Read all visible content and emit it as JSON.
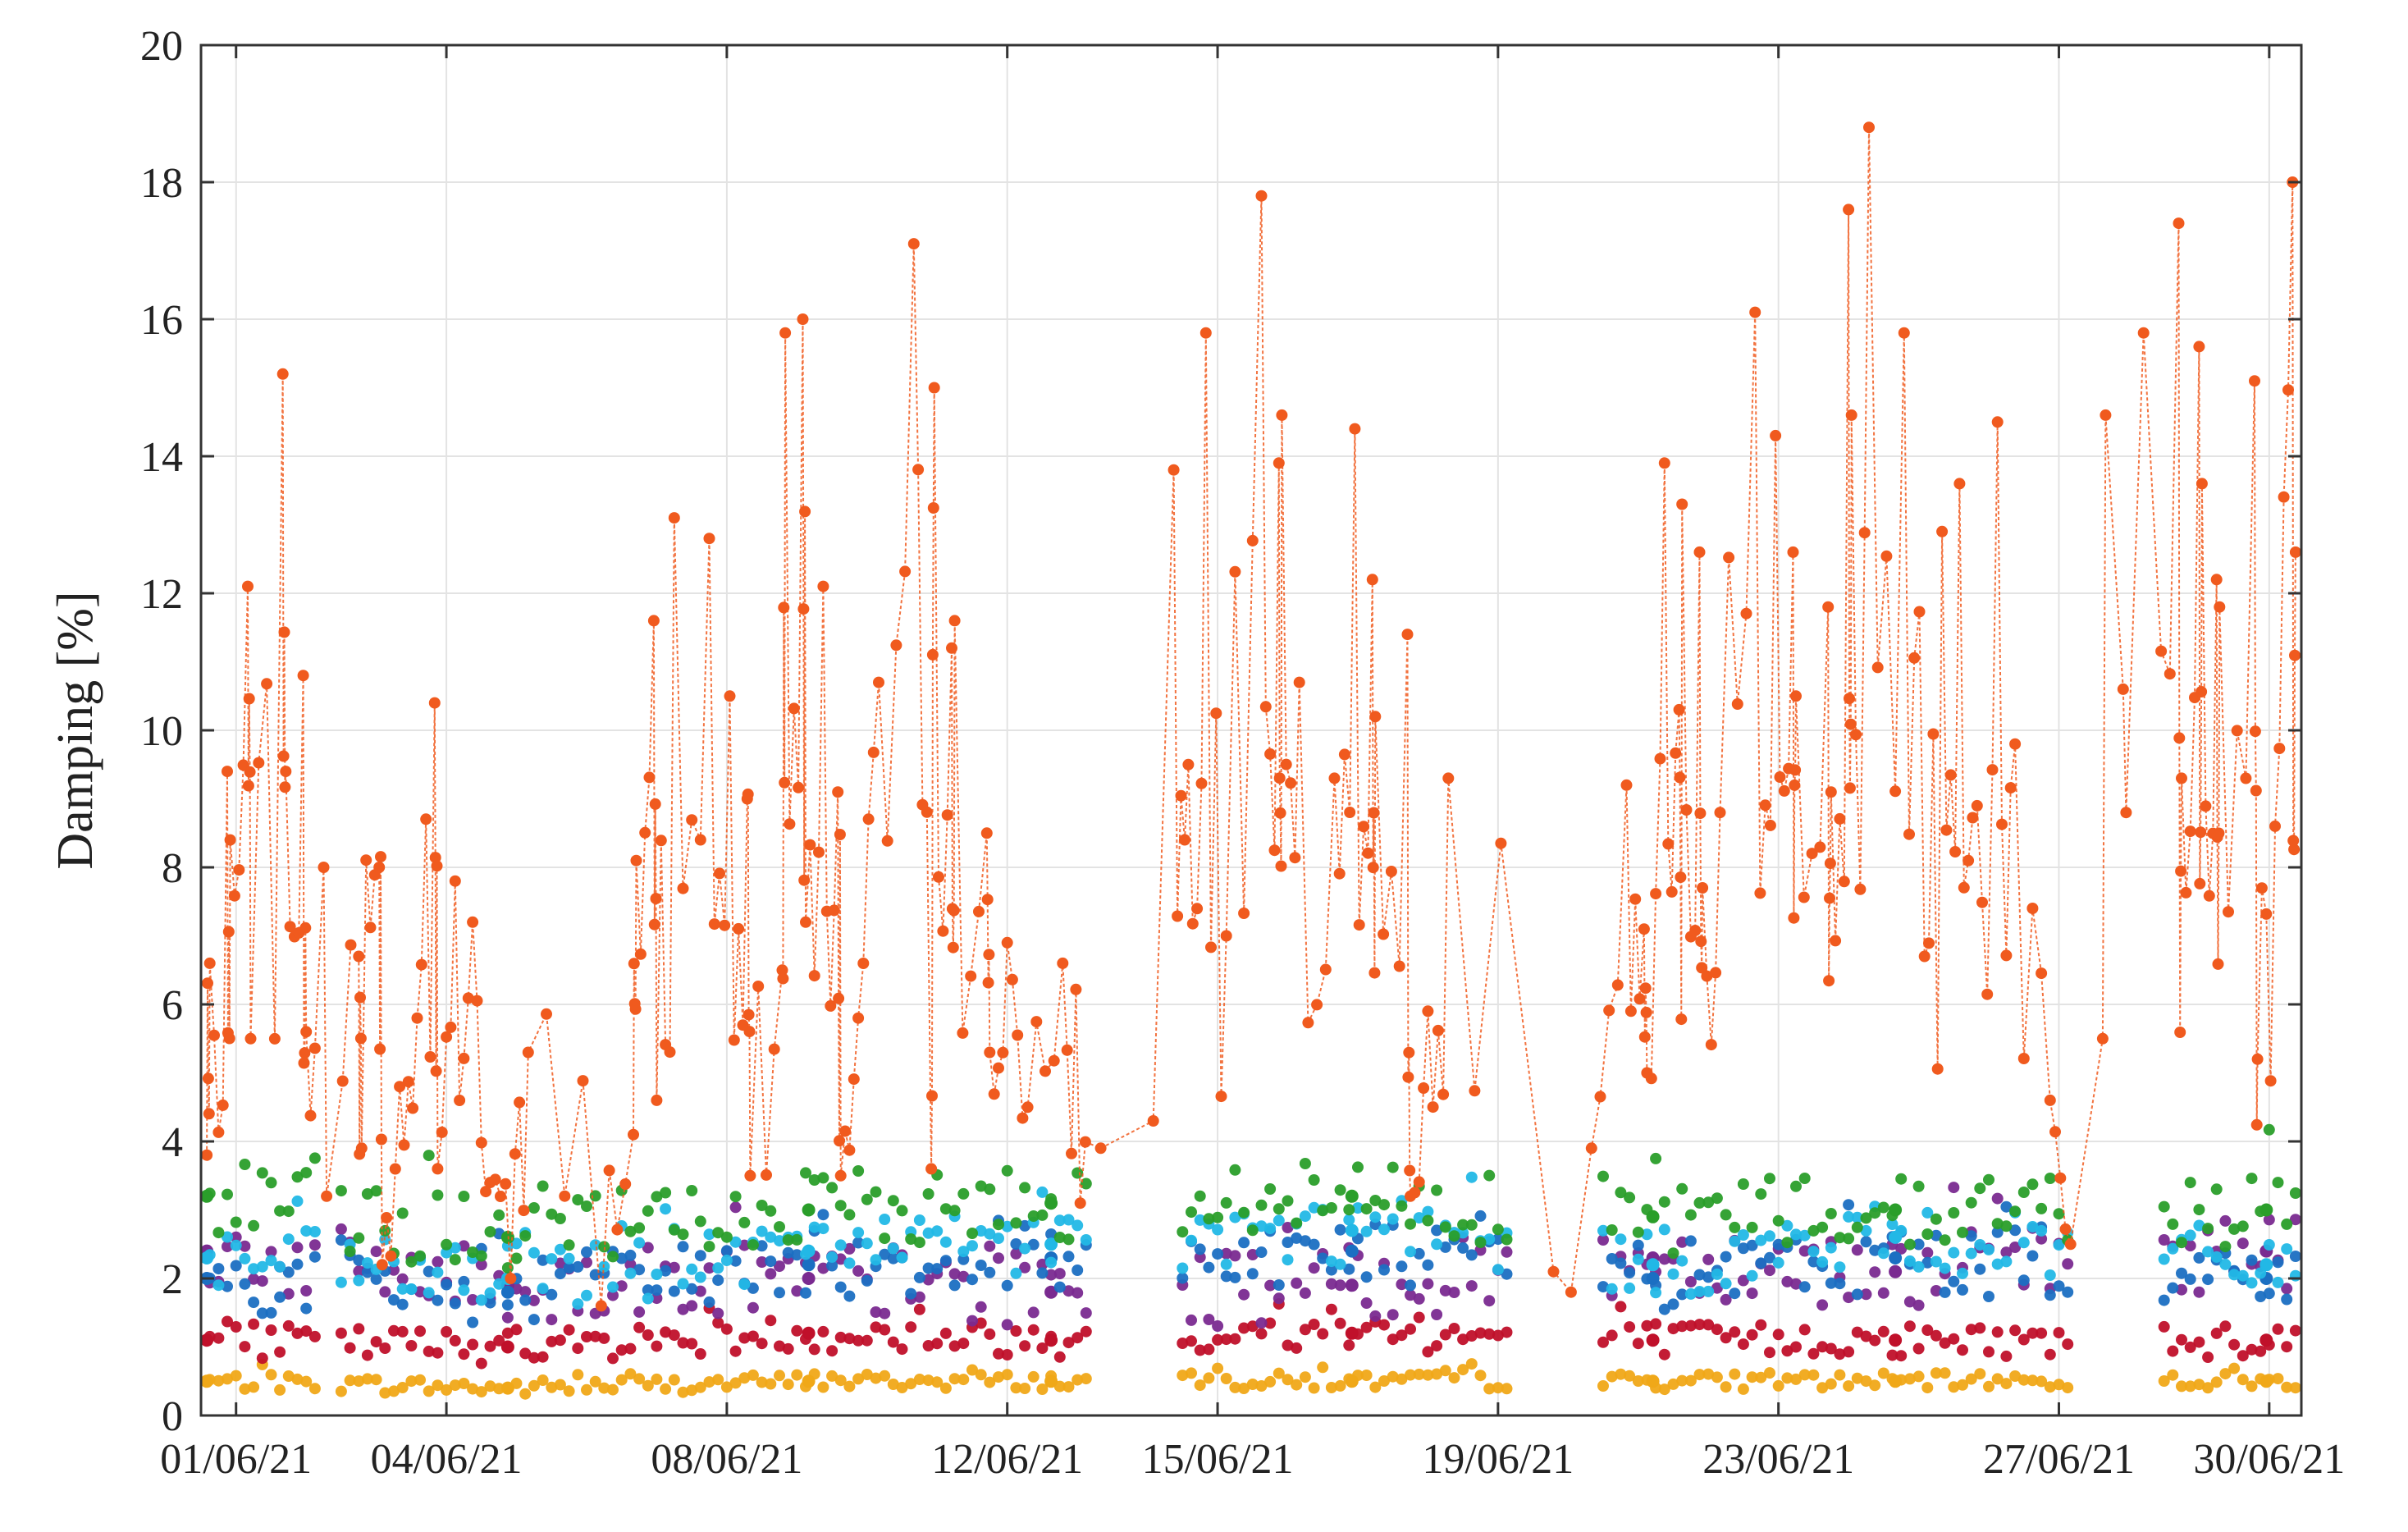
{
  "chart_data": {
    "type": "scatter",
    "title": "",
    "xlabel": "",
    "ylabel": "Damping [%]",
    "xlim": [
      "2021-06-01",
      "2021-06-30"
    ],
    "ylim": [
      0,
      20
    ],
    "grid": true,
    "legend": "none",
    "x_tick_labels": [
      "01/06/21",
      "04/06/21",
      "08/06/21",
      "12/06/21",
      "15/06/21",
      "19/06/21",
      "23/06/21",
      "27/06/21",
      "30/06/21"
    ],
    "x_ticks": [
      "2021-06-01",
      "2021-06-04",
      "2021-06-08",
      "2021-06-12",
      "2021-06-15",
      "2021-06-19",
      "2021-06-23",
      "2021-06-27",
      "2021-06-30"
    ],
    "y_tick_labels": [
      "0",
      "2",
      "4",
      "6",
      "8",
      "10",
      "12",
      "14",
      "16",
      "18",
      "20"
    ],
    "y_ticks": [
      0,
      2,
      4,
      6,
      8,
      10,
      12,
      14,
      16,
      18,
      20
    ],
    "data_gaps": [
      [
        "2021-06-02",
        "2021-06-02"
      ],
      [
        "2021-06-13",
        "2021-06-14"
      ],
      [
        "2021-06-19",
        "2021-06-20"
      ],
      [
        "2021-06-27",
        "2021-06-28"
      ]
    ],
    "series": [
      {
        "color": "#f05a1e",
        "marker": "dot",
        "connected": true,
        "x": [
          "2021-06-01",
          "2021-06-01",
          "2021-06-01",
          "2021-06-01",
          "2021-06-01",
          "2021-06-01",
          "2021-06-02",
          "2021-06-02",
          "2021-06-02",
          "2021-06-02",
          "2021-06-02",
          "2021-06-02",
          "2021-06-03",
          "2021-06-03",
          "2021-06-03",
          "2021-06-03",
          "2021-06-03",
          "2021-06-04",
          "2021-06-04",
          "2021-06-04",
          "2021-06-04",
          "2021-06-04",
          "2021-06-05",
          "2021-06-05",
          "2021-06-05",
          "2021-06-06",
          "2021-06-07",
          "2021-06-07",
          "2021-06-07",
          "2021-06-07",
          "2021-06-07",
          "2021-06-08",
          "2021-06-08",
          "2021-06-08",
          "2021-06-08",
          "2021-06-09",
          "2021-06-09",
          "2021-06-09",
          "2021-06-09",
          "2021-06-09",
          "2021-06-10",
          "2021-06-10",
          "2021-06-10",
          "2021-06-10",
          "2021-06-11",
          "2021-06-11",
          "2021-06-11",
          "2021-06-11",
          "2021-06-11",
          "2021-06-12",
          "2021-06-12",
          "2021-06-12",
          "2021-06-12",
          "2021-06-13",
          "2021-06-13",
          "2021-06-13",
          "2021-06-14",
          "2021-06-14",
          "2021-06-15",
          "2021-06-15",
          "2021-06-15",
          "2021-06-16",
          "2021-06-16",
          "2021-06-16",
          "2021-06-16",
          "2021-06-17",
          "2021-06-17",
          "2021-06-17",
          "2021-06-17",
          "2021-06-18",
          "2021-06-18",
          "2021-06-18",
          "2021-06-18",
          "2021-06-20",
          "2021-06-20",
          "2021-06-20",
          "2021-06-21",
          "2021-06-21",
          "2021-06-21",
          "2021-06-21",
          "2021-06-22",
          "2021-06-22",
          "2021-06-22",
          "2021-06-22",
          "2021-06-22",
          "2021-06-23",
          "2021-06-23",
          "2021-06-23",
          "2021-06-23",
          "2021-06-24",
          "2021-06-24",
          "2021-06-24",
          "2021-06-24",
          "2021-06-24",
          "2021-06-25",
          "2021-06-25",
          "2021-06-25",
          "2021-06-26",
          "2021-06-26",
          "2021-06-26",
          "2021-06-26",
          "2021-06-27",
          "2021-06-27",
          "2021-06-28",
          "2021-06-28",
          "2021-06-28",
          "2021-06-28",
          "2021-06-28",
          "2021-06-29",
          "2021-06-29",
          "2021-06-29",
          "2021-06-29",
          "2021-06-29",
          "2021-06-29",
          "2021-06-30",
          "2021-06-30",
          "2021-06-30",
          "2021-06-30",
          "2021-06-30"
        ],
        "y": [
          3.8,
          9.4,
          12.1,
          6.6,
          8.4,
          5.5,
          15.2,
          10.8,
          8.0,
          9.4,
          5.6,
          3.2,
          6.7,
          8.0,
          4.8,
          3.9,
          2.2,
          7.2,
          10.4,
          7.8,
          5.8,
          3.6,
          5.3,
          3.4,
          2.0,
          1.6,
          4.1,
          11.6,
          13.1,
          8.1,
          4.6,
          9.0,
          12.8,
          10.5,
          3.5,
          6.5,
          16.0,
          12.1,
          15.8,
          7.2,
          9.1,
          5.8,
          10.7,
          3.5,
          3.6,
          11.2,
          17.1,
          15.0,
          11.6,
          8.5,
          6.9,
          4.5,
          5.3,
          3.1,
          3.9,
          6.6,
          4.3,
          13.8,
          15.8,
          7.0,
          9.5,
          13.9,
          10.7,
          17.8,
          14.6,
          12.2,
          9.3,
          14.4,
          10.2,
          11.4,
          5.9,
          9.3,
          3.2,
          1.8,
          3.9,
          2.1,
          7.1,
          13.9,
          9.2,
          5.0,
          10.3,
          12.6,
          8.8,
          13.3,
          7.7,
          12.6,
          16.1,
          14.3,
          10.5,
          11.8,
          17.6,
          18.8,
          9.1,
          14.6,
          12.9,
          15.8,
          6.7,
          9.8,
          8.9,
          14.5,
          13.6,
          4.6,
          2.5,
          5.5,
          10.6,
          15.8,
          14.6,
          8.8,
          12.2,
          17.4,
          15.6,
          11.8,
          9.3,
          13.6,
          18.0,
          15.1,
          8.6,
          12.6,
          5.2
        ]
      },
      {
        "color": "#2a9e2a",
        "marker": "dot",
        "connected": false,
        "x": [
          "2021-06-01",
          "2021-06-05",
          "2021-06-09",
          "2021-06-13",
          "2021-06-17",
          "2021-06-21",
          "2021-06-25",
          "2021-06-30"
        ],
        "y": [
          3.2,
          2.6,
          3.0,
          3.1,
          3.2,
          2.9,
          3.0,
          3.0
        ]
      },
      {
        "color": "#22b8e6",
        "marker": "dot",
        "connected": false,
        "x": [
          "2021-06-01",
          "2021-06-05",
          "2021-06-09",
          "2021-06-13",
          "2021-06-17",
          "2021-06-21",
          "2021-06-25",
          "2021-06-30"
        ],
        "y": [
          2.3,
          2.0,
          2.4,
          2.5,
          2.7,
          2.2,
          2.6,
          2.2
        ]
      },
      {
        "color": "#1b6fc2",
        "marker": "dot",
        "connected": false,
        "x": [
          "2021-06-01",
          "2021-06-05",
          "2021-06-09",
          "2021-06-13",
          "2021-06-17",
          "2021-06-21",
          "2021-06-25",
          "2021-06-30"
        ],
        "y": [
          2.0,
          1.8,
          2.2,
          2.3,
          2.4,
          2.0,
          2.3,
          2.0
        ]
      },
      {
        "color": "#7a2a90",
        "marker": "dot",
        "connected": false,
        "x": [
          "2021-06-01",
          "2021-06-05",
          "2021-06-09",
          "2021-06-13",
          "2021-06-17",
          "2021-06-21",
          "2021-06-25",
          "2021-06-30"
        ],
        "y": [
          2.4,
          1.9,
          2.0,
          1.8,
          1.9,
          2.3,
          2.1,
          2.4
        ]
      },
      {
        "color": "#c0102a",
        "marker": "dot",
        "connected": false,
        "x": [
          "2021-06-01",
          "2021-06-05",
          "2021-06-09",
          "2021-06-13",
          "2021-06-17",
          "2021-06-21",
          "2021-06-25",
          "2021-06-30"
        ],
        "y": [
          1.1,
          1.0,
          1.2,
          1.1,
          1.2,
          1.1,
          1.1,
          1.1
        ]
      },
      {
        "color": "#f0a818",
        "marker": "dot",
        "connected": false,
        "x": [
          "2021-06-01",
          "2021-06-05",
          "2021-06-09",
          "2021-06-13",
          "2021-06-17",
          "2021-06-21",
          "2021-06-25",
          "2021-06-30"
        ],
        "y": [
          0.5,
          0.4,
          0.5,
          0.5,
          0.5,
          0.5,
          0.5,
          0.5
        ]
      },
      {
        "color": "#5cb52a",
        "marker": "dot",
        "connected": false,
        "x": [
          "2021-06-01",
          "2021-06-05",
          "2021-06-09",
          "2021-06-13",
          "2021-06-17",
          "2021-06-21",
          "2021-06-25",
          "2021-06-30"
        ],
        "y": [
          0.4,
          0.4,
          0.4,
          0.4,
          0.4,
          0.4,
          0.4,
          0.4
        ]
      }
    ]
  }
}
